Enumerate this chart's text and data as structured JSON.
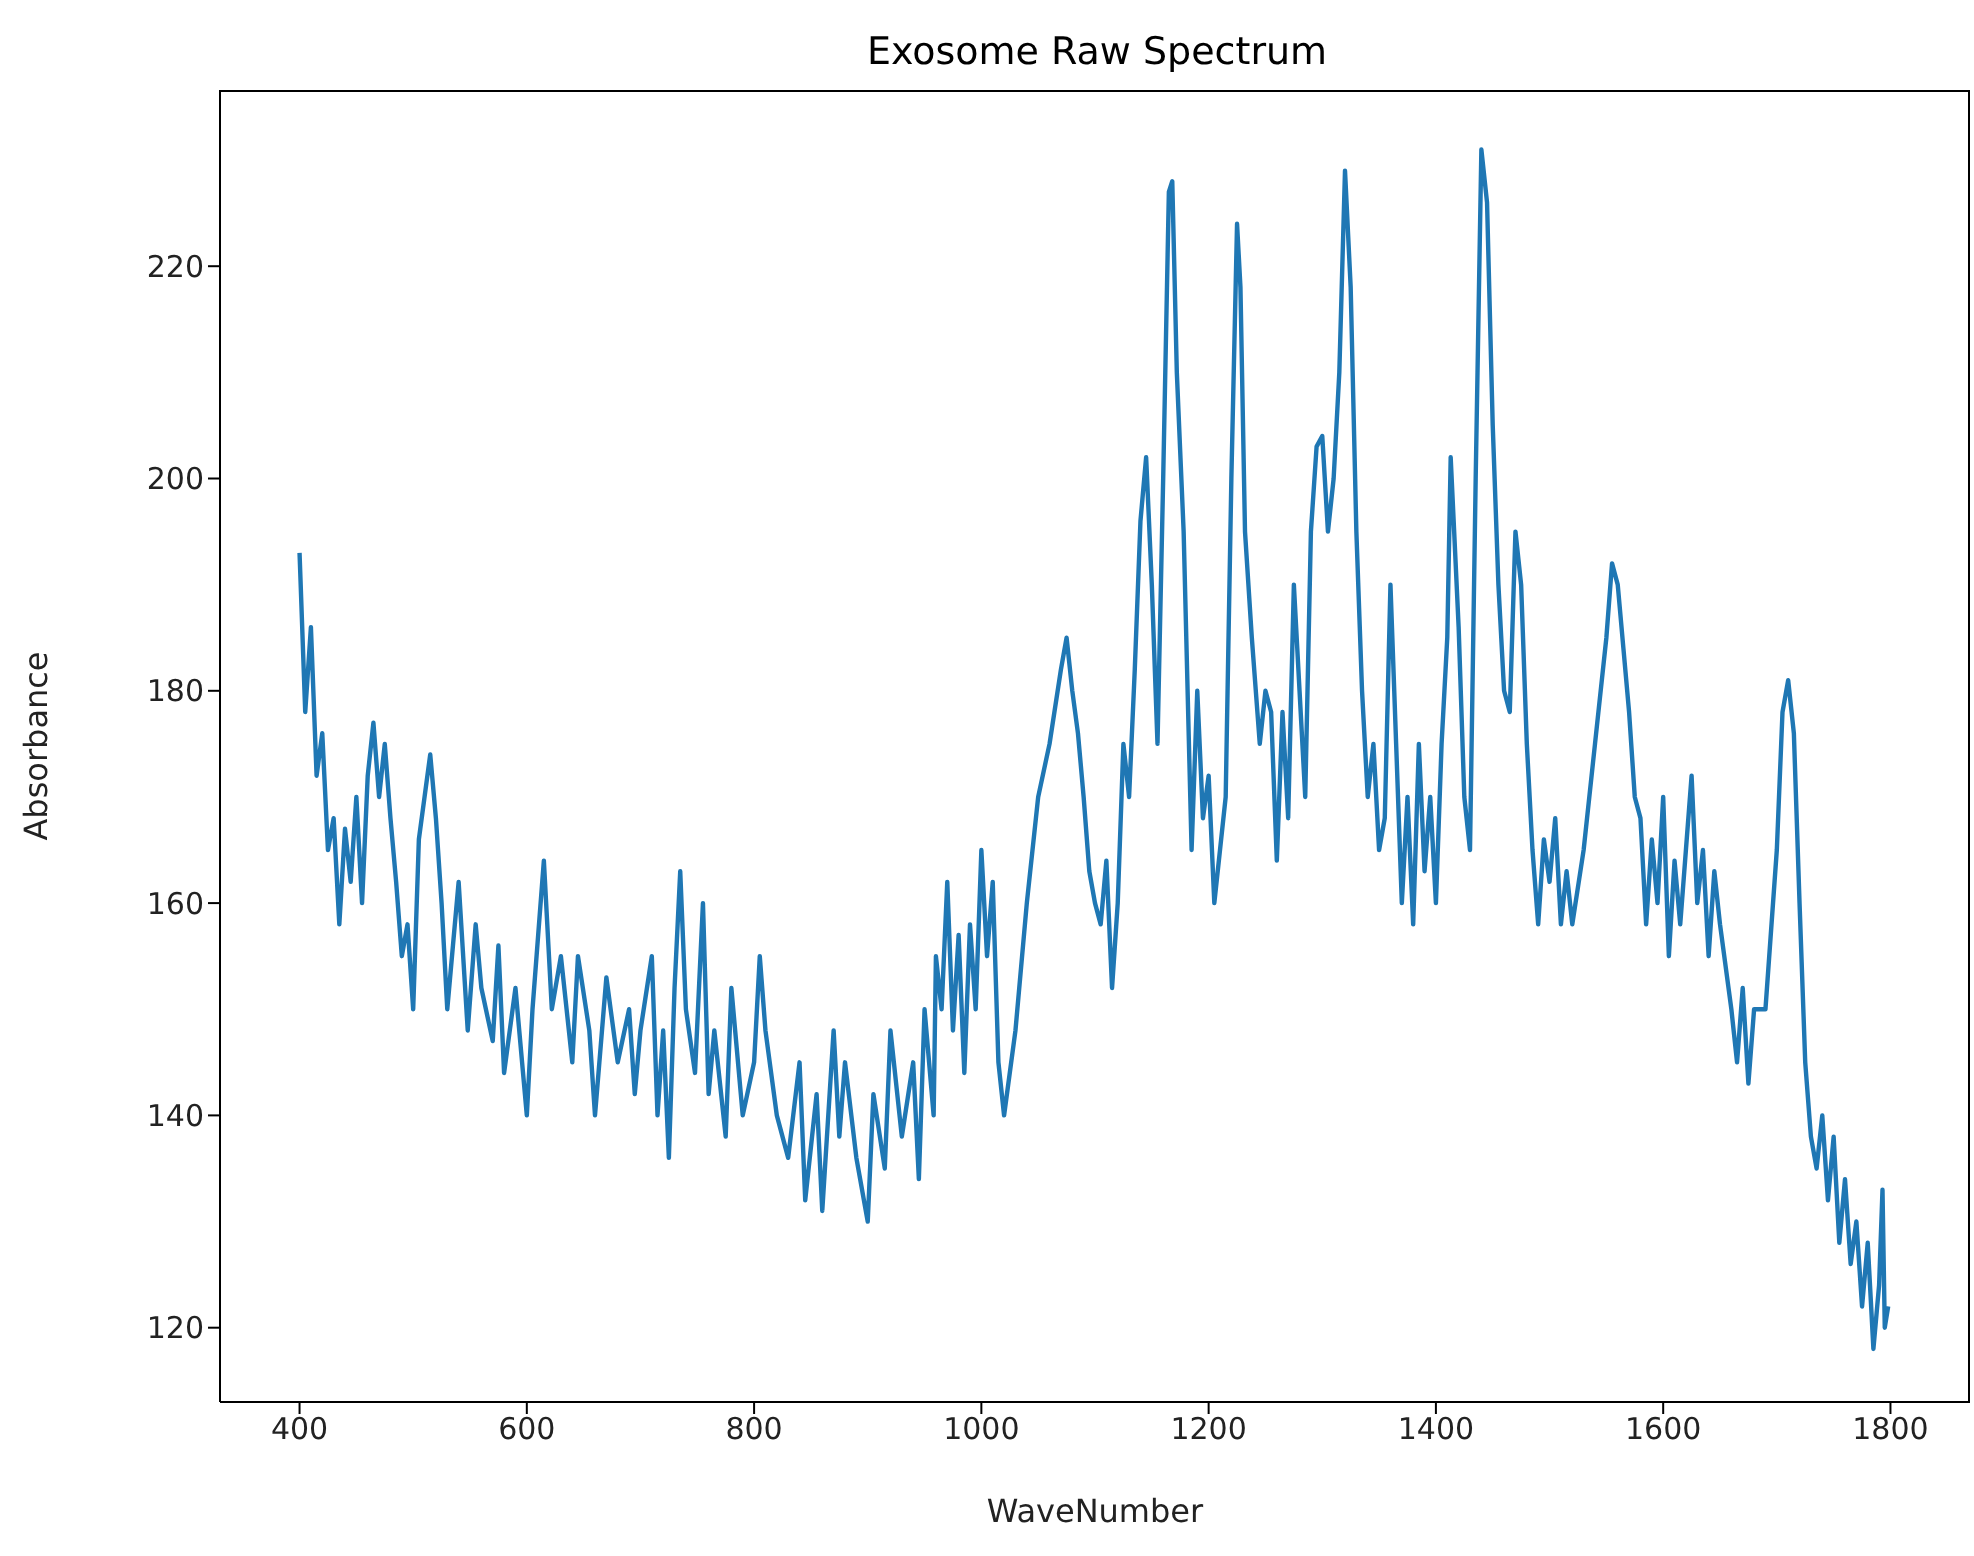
{
  "chart_data": {
    "type": "line",
    "title": "Exosome Raw Spectrum",
    "xlabel": "WaveNumber",
    "ylabel": "Absorbance",
    "xlim": [
      330,
      1870
    ],
    "xticks": [
      400,
      600,
      800,
      1000,
      1200,
      1400,
      1600,
      1800
    ],
    "ylim": [
      113,
      236.6
    ],
    "yticks": [
      120,
      140,
      160,
      180,
      200,
      220
    ],
    "grid": false,
    "legend": false,
    "marker": "none",
    "line_style": "solid",
    "x": [
      400,
      405,
      410,
      415,
      420,
      425,
      430,
      435,
      440,
      445,
      450,
      455,
      460,
      465,
      470,
      475,
      480,
      485,
      490,
      495,
      500,
      505,
      510,
      515,
      520,
      525,
      530,
      535,
      540,
      548,
      555,
      560,
      570,
      575,
      580,
      590,
      600,
      605,
      610,
      615,
      622,
      630,
      640,
      645,
      655,
      660,
      670,
      680,
      690,
      695,
      700,
      710,
      715,
      720,
      725,
      730,
      735,
      740,
      748,
      755,
      760,
      765,
      775,
      780,
      790,
      800,
      805,
      810,
      820,
      830,
      840,
      845,
      855,
      860,
      870,
      875,
      880,
      890,
      900,
      905,
      915,
      920,
      930,
      940,
      945,
      950,
      958,
      960,
      965,
      970,
      975,
      980,
      985,
      990,
      995,
      1000,
      1005,
      1010,
      1015,
      1020,
      1030,
      1040,
      1050,
      1060,
      1070,
      1075,
      1080,
      1085,
      1090,
      1095,
      1100,
      1105,
      1110,
      1115,
      1120,
      1125,
      1130,
      1135,
      1140,
      1145,
      1150,
      1155,
      1160,
      1165,
      1168,
      1172,
      1178,
      1185,
      1190,
      1195,
      1200,
      1205,
      1210,
      1215,
      1220,
      1225,
      1228,
      1232,
      1238,
      1245,
      1250,
      1255,
      1260,
      1265,
      1270,
      1275,
      1280,
      1285,
      1290,
      1295,
      1300,
      1305,
      1310,
      1315,
      1320,
      1325,
      1330,
      1335,
      1340,
      1345,
      1350,
      1355,
      1360,
      1365,
      1370,
      1375,
      1380,
      1385,
      1390,
      1395,
      1400,
      1405,
      1410,
      1413,
      1420,
      1425,
      1430,
      1435,
      1440,
      1445,
      1450,
      1455,
      1460,
      1465,
      1470,
      1475,
      1480,
      1485,
      1490,
      1495,
      1500,
      1505,
      1510,
      1515,
      1520,
      1530,
      1540,
      1550,
      1555,
      1560,
      1565,
      1570,
      1575,
      1580,
      1585,
      1590,
      1595,
      1600,
      1605,
      1610,
      1615,
      1620,
      1625,
      1630,
      1635,
      1640,
      1645,
      1650,
      1660,
      1665,
      1670,
      1675,
      1680,
      1690,
      1700,
      1705,
      1710,
      1715,
      1720,
      1725,
      1730,
      1735,
      1740,
      1745,
      1750,
      1755,
      1760,
      1765,
      1770,
      1775,
      1780,
      1785,
      1790,
      1793,
      1795,
      1798
    ],
    "series": [
      {
        "color": "#1f77b4",
        "values": [
          193,
          178,
          186,
          172,
          176,
          165,
          168,
          158,
          167,
          162,
          170,
          160,
          172,
          177,
          170,
          175,
          168,
          162,
          155,
          158,
          150,
          166,
          170,
          174,
          168,
          160,
          150,
          156,
          162,
          148,
          158,
          152,
          147,
          156,
          144,
          152,
          140,
          150,
          157,
          164,
          150,
          155,
          145,
          155,
          148,
          140,
          153,
          145,
          150,
          142,
          148,
          155,
          140,
          148,
          136,
          152,
          163,
          150,
          144,
          160,
          142,
          148,
          138,
          152,
          140,
          145,
          155,
          148,
          140,
          136,
          145,
          132,
          142,
          131,
          148,
          138,
          145,
          136,
          130,
          142,
          135,
          148,
          138,
          145,
          134,
          150,
          140,
          155,
          150,
          162,
          148,
          157,
          144,
          158,
          150,
          165,
          155,
          162,
          145,
          140,
          148,
          160,
          170,
          175,
          182,
          185,
          180,
          176,
          170,
          163,
          160,
          158,
          164,
          152,
          160,
          175,
          170,
          182,
          196,
          202,
          190,
          175,
          200,
          227,
          228,
          210,
          195,
          165,
          180,
          168,
          172,
          160,
          165,
          170,
          200,
          224,
          218,
          195,
          185,
          175,
          180,
          178,
          164,
          178,
          168,
          190,
          180,
          170,
          195,
          203,
          204,
          195,
          200,
          210,
          229,
          218,
          195,
          180,
          170,
          175,
          165,
          168,
          190,
          175,
          160,
          170,
          158,
          175,
          163,
          170,
          160,
          175,
          185,
          202,
          186,
          170,
          165,
          200,
          231,
          226,
          205,
          190,
          180,
          178,
          195,
          190,
          175,
          165,
          158,
          166,
          162,
          168,
          158,
          163,
          158,
          165,
          175,
          185,
          192,
          190,
          184,
          178,
          170,
          168,
          158,
          166,
          160,
          170,
          155,
          164,
          158,
          165,
          172,
          160,
          165,
          155,
          163,
          158,
          150,
          145,
          152,
          143,
          150,
          150,
          165,
          178,
          181,
          176,
          160,
          145,
          138,
          135,
          140,
          132,
          138,
          128,
          134,
          126,
          130,
          122,
          128,
          118,
          124,
          133,
          120,
          122
        ]
      }
    ]
  }
}
